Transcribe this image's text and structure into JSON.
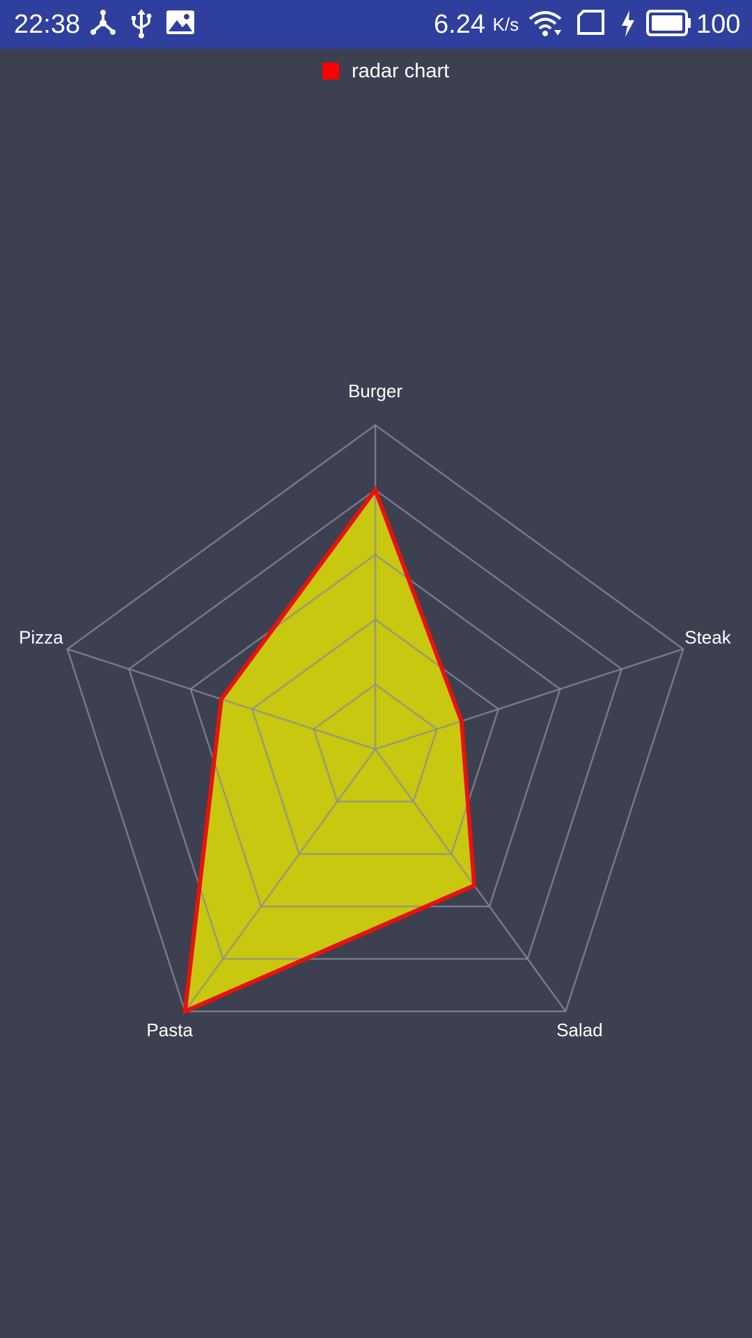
{
  "status_bar": {
    "time": "22:38",
    "net_speed_value": "6.24",
    "net_speed_unit": "K/s",
    "battery": "100",
    "icons": [
      "share-hub-icon",
      "usb-icon",
      "image-icon",
      "wifi-icon",
      "sim-card-icon",
      "charging-icon",
      "battery-icon"
    ]
  },
  "colors": {
    "background": "#3c4050",
    "status_bar": "#2f3f9e",
    "grid": "#8a8c98",
    "fill": "#d4d40a",
    "stroke": "#e8120c",
    "legend": "#ff0000"
  },
  "chart_data": {
    "type": "radar",
    "title": "",
    "legend": [
      {
        "label": "radar chart",
        "color": "#ff0000"
      }
    ],
    "categories": [
      "Burger",
      "Steak",
      "Salad",
      "Pasta",
      "Pizza"
    ],
    "series": [
      {
        "name": "radar chart",
        "values": [
          80,
          28,
          52,
          100,
          50
        ]
      }
    ],
    "rlim": [
      0,
      100
    ],
    "grid_levels": 5
  }
}
